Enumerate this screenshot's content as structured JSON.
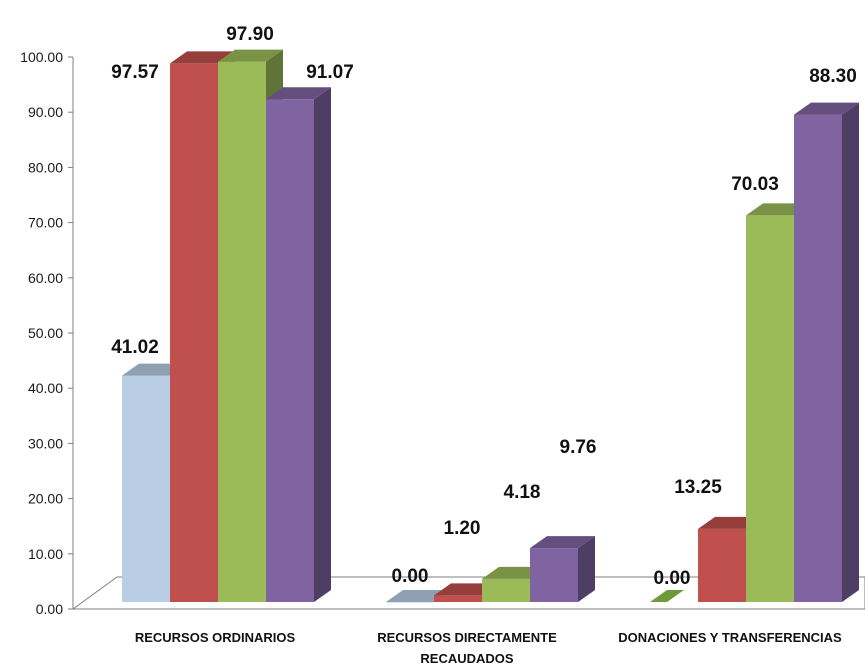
{
  "chart_data": {
    "type": "bar",
    "title": "",
    "xlabel": "",
    "ylabel": "",
    "ylim": [
      0,
      100
    ],
    "yticks": [
      "0.00",
      "10.00",
      "20.00",
      "30.00",
      "40.00",
      "50.00",
      "60.00",
      "70.00",
      "80.00",
      "90.00",
      "100.00"
    ],
    "categories": [
      [
        "RECURSOS ORDINARIOS"
      ],
      [
        "RECURSOS DIRECTAMENTE",
        "RECAUDADOS"
      ],
      [
        "DONACIONES Y TRANSFERENCIAS"
      ]
    ],
    "series": [
      {
        "color": "#b9cde5",
        "values": [
          41.02,
          0.0,
          null
        ],
        "labels": [
          "41.02",
          "0.00",
          ""
        ]
      },
      {
        "color": "#c0504d",
        "values": [
          97.57,
          1.2,
          13.25
        ],
        "labels": [
          "97.57",
          "1.20",
          "13.25"
        ]
      },
      {
        "color": "#9bbb59",
        "values": [
          97.9,
          4.18,
          70.03
        ],
        "labels": [
          "97.90",
          "4.18",
          "70.03"
        ]
      },
      {
        "color": "#8064a2",
        "values": [
          91.07,
          9.76,
          88.3
        ],
        "labels": [
          "91.07",
          "9.76",
          "88.30"
        ]
      }
    ],
    "extra_labels": [
      {
        "category": 2,
        "text": "0.00"
      }
    ],
    "grid": false,
    "legend": "none"
  }
}
